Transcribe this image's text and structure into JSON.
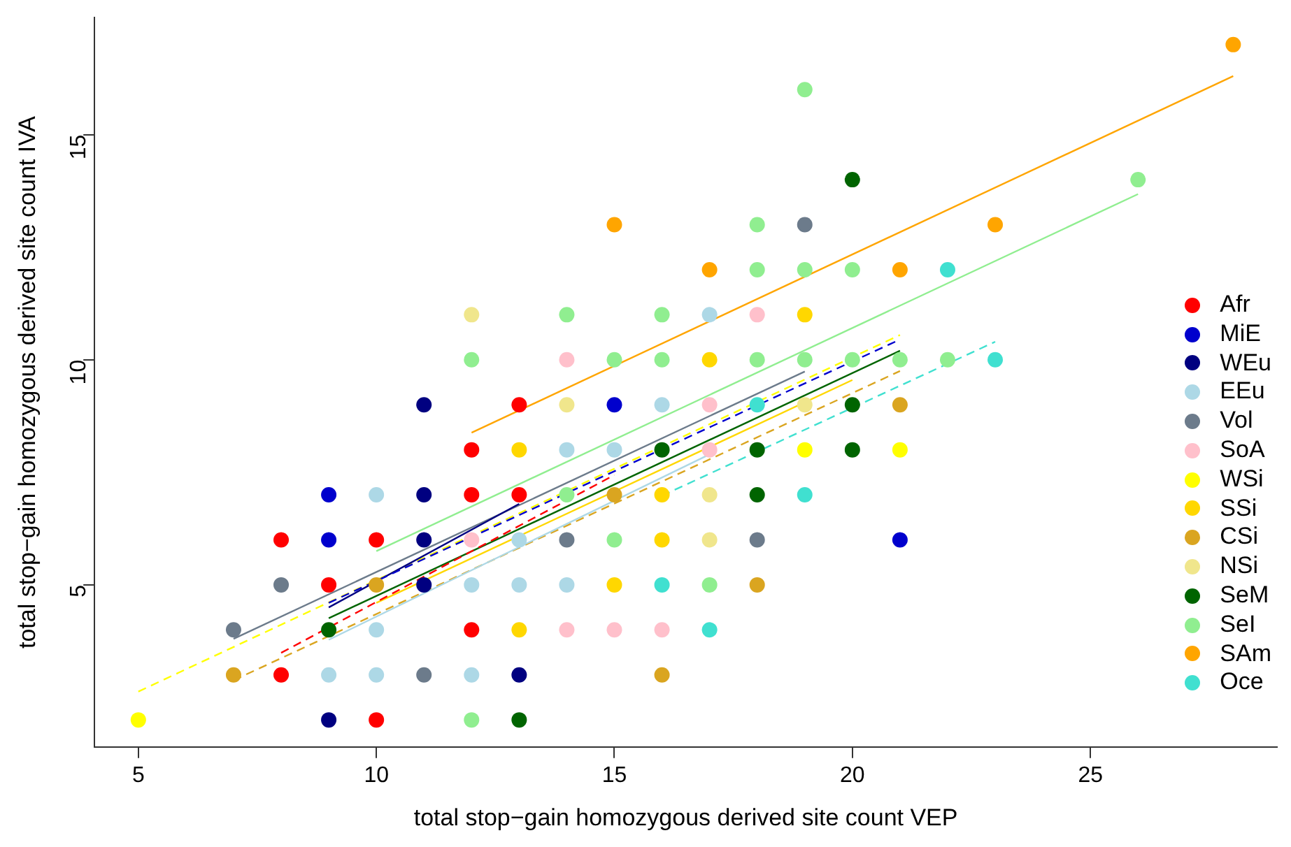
{
  "chart_data": {
    "type": "scatter",
    "xlabel": "total stop−gain homozygous derived site count VEP",
    "ylabel": "total stop−gain homozygous derived site count IVA",
    "xlim": [
      4.08,
      28.92
    ],
    "ylim": [
      1.4,
      17.6
    ],
    "xticks": [
      5,
      10,
      15,
      20,
      25
    ],
    "yticks": [
      5,
      10,
      15
    ],
    "grid": false,
    "legend": "right",
    "marker": "circle",
    "series": [
      {
        "name": "Afr",
        "color": "#ff0000",
        "x": [
          8,
          8,
          9,
          10,
          10,
          12,
          12,
          12,
          13,
          13
        ],
        "values": [
          6,
          3,
          5,
          6,
          2,
          8,
          7,
          4,
          9,
          7
        ]
      },
      {
        "name": "MiE",
        "color": "#0000cd",
        "x": [
          9,
          9,
          15,
          21
        ],
        "values": [
          7,
          6,
          9,
          6
        ]
      },
      {
        "name": "WEu",
        "color": "#000080",
        "x": [
          9,
          11,
          11,
          11,
          11,
          13
        ],
        "values": [
          2,
          9,
          7,
          6,
          5,
          3
        ]
      },
      {
        "name": "EEu",
        "color": "#add8e6",
        "x": [
          9,
          10,
          10,
          10,
          12,
          12,
          13,
          13,
          14,
          14,
          15,
          16,
          17
        ],
        "values": [
          3,
          7,
          4,
          3,
          5,
          3,
          6,
          5,
          8,
          5,
          8,
          9,
          11
        ]
      },
      {
        "name": "Vol",
        "color": "#6c7b8b",
        "x": [
          7,
          8,
          11,
          14,
          18,
          19
        ],
        "values": [
          4,
          5,
          3,
          6,
          6,
          13
        ]
      },
      {
        "name": "SoA",
        "color": "#ffc0cb",
        "x": [
          12,
          14,
          14,
          15,
          16,
          17,
          17,
          18
        ],
        "values": [
          6,
          10,
          4,
          4,
          4,
          9,
          8,
          11
        ]
      },
      {
        "name": "WSi",
        "color": "#ffff00",
        "x": [
          5,
          19,
          21
        ],
        "values": [
          2,
          8,
          8
        ]
      },
      {
        "name": "SSi",
        "color": "#ffd700",
        "x": [
          13,
          13,
          15,
          16,
          16,
          17,
          19
        ],
        "values": [
          8,
          4,
          5,
          7,
          6,
          10,
          11
        ]
      },
      {
        "name": "CSi",
        "color": "#daa520",
        "x": [
          7,
          10,
          15,
          16,
          18,
          21
        ],
        "values": [
          3,
          5,
          7,
          3,
          5,
          9
        ]
      },
      {
        "name": "NSi",
        "color": "#f0e68c",
        "x": [
          12,
          14,
          17,
          17,
          19
        ],
        "values": [
          11,
          9,
          7,
          6,
          9
        ]
      },
      {
        "name": "SeM",
        "color": "#006400",
        "x": [
          9,
          13,
          16,
          18,
          18,
          20,
          20,
          20
        ],
        "values": [
          4,
          2,
          8,
          8,
          7,
          14,
          9,
          8
        ]
      },
      {
        "name": "SeI",
        "color": "#90ee90",
        "x": [
          12,
          12,
          14,
          14,
          15,
          15,
          16,
          16,
          17,
          18,
          18,
          18,
          19,
          19,
          19,
          20,
          20,
          21,
          22,
          26
        ],
        "values": [
          10,
          2,
          11,
          7,
          10,
          6,
          11,
          10,
          5,
          13,
          12,
          10,
          16,
          12,
          10,
          12,
          10,
          10,
          10,
          14
        ]
      },
      {
        "name": "SAm",
        "color": "#ffa500",
        "x": [
          15,
          17,
          21,
          23,
          28
        ],
        "values": [
          13,
          12,
          12,
          13,
          17
        ]
      },
      {
        "name": "Oce",
        "color": "#40e0d0",
        "x": [
          16,
          17,
          18,
          19,
          22,
          23
        ],
        "values": [
          5,
          4,
          9,
          7,
          12,
          10
        ]
      },
      {
        "type": "line",
        "marker": "none",
        "color": "#ff0000",
        "line_style": "dashed",
        "x": [
          8,
          15
        ],
        "values": [
          3.49,
          7.44
        ]
      },
      {
        "type": "line",
        "marker": "none",
        "color": "#0000cd",
        "line_style": "dashed",
        "x": [
          9,
          21
        ],
        "values": [
          4.6,
          10.45
        ]
      },
      {
        "type": "line",
        "marker": "none",
        "color": "#000080",
        "x": [
          9,
          13
        ],
        "values": [
          4.5,
          6.8
        ]
      },
      {
        "type": "line",
        "marker": "none",
        "color": "#add8e6",
        "x": [
          9,
          17
        ],
        "values": [
          3.78,
          7.9
        ]
      },
      {
        "type": "line",
        "marker": "none",
        "color": "#6c7b8b",
        "x": [
          7,
          19
        ],
        "values": [
          3.8,
          9.74
        ]
      },
      {
        "type": "line",
        "marker": "none",
        "color": "#ffff00",
        "line_style": "dashed",
        "x": [
          5,
          21
        ],
        "values": [
          2.63,
          10.55
        ]
      },
      {
        "type": "line",
        "marker": "none",
        "color": "#ffd700",
        "x": [
          10,
          20
        ],
        "values": [
          4.6,
          9.55
        ]
      },
      {
        "type": "line",
        "marker": "none",
        "color": "#daa520",
        "line_style": "dashed",
        "x": [
          7,
          21
        ],
        "values": [
          2.88,
          9.75
        ]
      },
      {
        "type": "line",
        "marker": "none",
        "color": "#006400",
        "x": [
          9,
          21
        ],
        "values": [
          4.26,
          10.2
        ]
      },
      {
        "type": "line",
        "marker": "none",
        "color": "#90ee90",
        "x": [
          10,
          26
        ],
        "values": [
          5.75,
          13.68
        ]
      },
      {
        "type": "line",
        "marker": "none",
        "color": "#ffa500",
        "x": [
          12,
          28
        ],
        "values": [
          8.38,
          16.3
        ]
      },
      {
        "type": "line",
        "marker": "none",
        "color": "#40e0d0",
        "line_style": "dashed",
        "x": [
          16,
          23
        ],
        "values": [
          6.98,
          10.4
        ]
      }
    ]
  }
}
